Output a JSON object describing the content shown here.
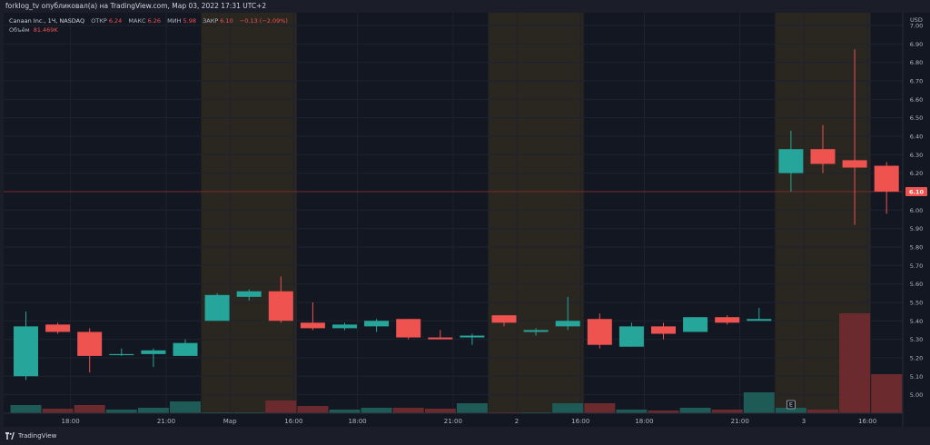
{
  "header": {
    "published_line": "forklog_tv опубликовал(а) на TradingView.com, Мар 03, 2022 17:31 UTC+2"
  },
  "legend": {
    "symbol": "Canaan Inc., 1Ч, NASDAQ",
    "open_label": "ОТКР",
    "open": "6.24",
    "high_label": "МАКС",
    "high": "6.26",
    "low_label": "МИН",
    "low": "5.98",
    "close_label": "ЗАКР",
    "close": "6.10",
    "change": "−0.13 (−2.09%)",
    "volume_label": "Объём",
    "volume": "81.469K"
  },
  "footer": {
    "logo_text": "TradingView"
  },
  "colors": {
    "up": "#26a69a",
    "down": "#ef5350",
    "up_volume": "#1e5a56",
    "down_volume": "#6b2b2e",
    "session_band": "#2a2620",
    "price_line": "#7a2a2e"
  },
  "chart_data": {
    "type": "candlestick",
    "currency": "USD",
    "ylim": [
      4.9,
      7.05
    ],
    "y_ticks": [
      "7.00",
      "6.90",
      "6.80",
      "6.70",
      "6.60",
      "6.50",
      "6.40",
      "6.30",
      "6.20",
      "6.10",
      "6.00",
      "5.90",
      "5.80",
      "5.70",
      "5.60",
      "5.50",
      "5.40",
      "5.30",
      "5.20",
      "5.10",
      "5.00"
    ],
    "x_labels": [
      {
        "label": "18:00",
        "index": 1.4
      },
      {
        "label": "21:00",
        "index": 4.4
      },
      {
        "label": "Мар",
        "index": 6.4
      },
      {
        "label": "16:00",
        "index": 8.4
      },
      {
        "label": "18:00",
        "index": 10.4
      },
      {
        "label": "21:00",
        "index": 13.4
      },
      {
        "label": "2",
        "index": 15.4
      },
      {
        "label": "16:00",
        "index": 17.4
      },
      {
        "label": "18:00",
        "index": 19.4
      },
      {
        "label": "21:00",
        "index": 22.4
      },
      {
        "label": "3",
        "index": 24.4
      },
      {
        "label": "16:00",
        "index": 26.4
      }
    ],
    "current_price": "6.10",
    "session_bands": [
      [
        6,
        8
      ],
      [
        15,
        17
      ],
      [
        24,
        26
      ]
    ],
    "earnings_marker": {
      "label": "E",
      "index": 24
    },
    "candles": [
      {
        "o": 5.1,
        "h": 5.45,
        "l": 5.08,
        "c": 5.37,
        "v": 9
      },
      {
        "o": 5.38,
        "h": 5.39,
        "l": 5.33,
        "c": 5.34,
        "v": 5
      },
      {
        "o": 5.34,
        "h": 5.36,
        "l": 5.12,
        "c": 5.21,
        "v": 9
      },
      {
        "o": 5.22,
        "h": 5.25,
        "l": 5.21,
        "c": 5.22,
        "v": 4
      },
      {
        "o": 5.22,
        "h": 5.25,
        "l": 5.15,
        "c": 5.24,
        "v": 6
      },
      {
        "o": 5.21,
        "h": 5.3,
        "l": 5.21,
        "c": 5.28,
        "v": 13
      },
      {
        "o": 5.4,
        "h": 5.55,
        "l": 5.4,
        "c": 5.54,
        "v": 1
      },
      {
        "o": 5.53,
        "h": 5.57,
        "l": 5.51,
        "c": 5.56,
        "v": 1
      },
      {
        "o": 5.56,
        "h": 5.64,
        "l": 5.39,
        "c": 5.4,
        "v": 14
      },
      {
        "o": 5.39,
        "h": 5.5,
        "l": 5.35,
        "c": 5.36,
        "v": 8
      },
      {
        "o": 5.36,
        "h": 5.39,
        "l": 5.35,
        "c": 5.38,
        "v": 4
      },
      {
        "o": 5.37,
        "h": 5.41,
        "l": 5.34,
        "c": 5.4,
        "v": 6
      },
      {
        "o": 5.41,
        "h": 5.41,
        "l": 5.3,
        "c": 5.31,
        "v": 6
      },
      {
        "o": 5.31,
        "h": 5.35,
        "l": 5.3,
        "c": 5.3,
        "v": 5
      },
      {
        "o": 5.31,
        "h": 5.33,
        "l": 5.27,
        "c": 5.32,
        "v": 11
      },
      {
        "o": 5.43,
        "h": 5.43,
        "l": 5.37,
        "c": 5.39,
        "v": 1
      },
      {
        "o": 5.34,
        "h": 5.36,
        "l": 5.32,
        "c": 5.35,
        "v": 1
      },
      {
        "o": 5.37,
        "h": 5.53,
        "l": 5.35,
        "c": 5.4,
        "v": 11
      },
      {
        "o": 5.41,
        "h": 5.44,
        "l": 5.25,
        "c": 5.27,
        "v": 11
      },
      {
        "o": 5.26,
        "h": 5.39,
        "l": 5.26,
        "c": 5.37,
        "v": 4
      },
      {
        "o": 5.37,
        "h": 5.39,
        "l": 5.3,
        "c": 5.33,
        "v": 3
      },
      {
        "o": 5.34,
        "h": 5.42,
        "l": 5.34,
        "c": 5.42,
        "v": 6
      },
      {
        "o": 5.42,
        "h": 5.43,
        "l": 5.38,
        "c": 5.39,
        "v": 4
      },
      {
        "o": 5.4,
        "h": 5.47,
        "l": 5.4,
        "c": 5.41,
        "v": 23
      },
      {
        "o": 6.2,
        "h": 6.43,
        "l": 6.1,
        "c": 6.33,
        "v": 6
      },
      {
        "o": 6.33,
        "h": 6.46,
        "l": 6.2,
        "c": 6.25,
        "v": 4
      },
      {
        "o": 6.27,
        "h": 6.87,
        "l": 5.92,
        "c": 6.23,
        "v": 110
      },
      {
        "o": 6.24,
        "h": 6.26,
        "l": 5.98,
        "c": 6.1,
        "v": 43
      }
    ]
  }
}
